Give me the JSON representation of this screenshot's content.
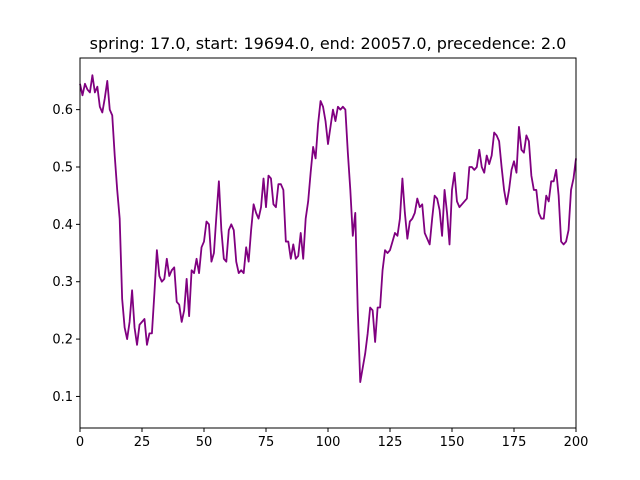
{
  "chart_data": {
    "type": "line",
    "title": "spring: 17.0, start: 19694.0, end: 20057.0, precedence: 2.0",
    "xlabel": "",
    "ylabel": "",
    "xlim": [
      0,
      200
    ],
    "ylim": [
      0.045,
      0.69
    ],
    "xticks": [
      0,
      25,
      50,
      75,
      100,
      125,
      150,
      175,
      200
    ],
    "yticks": [
      0.1,
      0.2,
      0.3,
      0.4,
      0.5,
      0.6
    ],
    "grid": false,
    "legend": "none",
    "series": [
      {
        "color": "#800080",
        "x": [
          0,
          1,
          2,
          3,
          4,
          5,
          6,
          7,
          8,
          9,
          10,
          11,
          12,
          13,
          14,
          15,
          16,
          17,
          18,
          19,
          20,
          21,
          22,
          23,
          24,
          25,
          26,
          27,
          28,
          29,
          30,
          31,
          32,
          33,
          34,
          35,
          36,
          37,
          38,
          39,
          40,
          41,
          42,
          43,
          44,
          45,
          46,
          47,
          48,
          49,
          50,
          51,
          52,
          53,
          54,
          55,
          56,
          57,
          58,
          59,
          60,
          61,
          62,
          63,
          64,
          65,
          66,
          67,
          68,
          69,
          70,
          71,
          72,
          73,
          74,
          75,
          76,
          77,
          78,
          79,
          80,
          81,
          82,
          83,
          84,
          85,
          86,
          87,
          88,
          89,
          90,
          91,
          92,
          93,
          94,
          95,
          96,
          97,
          98,
          99,
          100,
          101,
          102,
          103,
          104,
          105,
          106,
          107,
          108,
          109,
          110,
          111,
          112,
          113,
          114,
          115,
          116,
          117,
          118,
          119,
          120,
          121,
          122,
          123,
          124,
          125,
          126,
          127,
          128,
          129,
          130,
          131,
          132,
          133,
          134,
          135,
          136,
          137,
          138,
          139,
          140,
          141,
          142,
          143,
          144,
          145,
          146,
          147,
          148,
          149,
          150,
          151,
          152,
          153,
          154,
          155,
          156,
          157,
          158,
          159,
          160,
          161,
          162,
          163,
          164,
          165,
          166,
          167,
          168,
          169,
          170,
          171,
          172,
          173,
          174,
          175,
          176,
          177,
          178,
          179,
          180,
          181,
          182,
          183,
          184,
          185,
          186,
          187,
          188,
          189,
          190,
          191,
          192,
          193,
          194,
          195,
          196,
          197,
          198,
          199,
          200
        ],
        "y": [
          0.645,
          0.625,
          0.645,
          0.635,
          0.63,
          0.66,
          0.63,
          0.64,
          0.605,
          0.595,
          0.62,
          0.65,
          0.6,
          0.59,
          0.52,
          0.46,
          0.41,
          0.27,
          0.22,
          0.2,
          0.23,
          0.285,
          0.22,
          0.19,
          0.225,
          0.23,
          0.235,
          0.19,
          0.21,
          0.21,
          0.28,
          0.355,
          0.31,
          0.3,
          0.305,
          0.34,
          0.31,
          0.32,
          0.325,
          0.265,
          0.26,
          0.23,
          0.25,
          0.305,
          0.24,
          0.32,
          0.315,
          0.34,
          0.315,
          0.36,
          0.37,
          0.405,
          0.4,
          0.335,
          0.35,
          0.415,
          0.475,
          0.39,
          0.34,
          0.335,
          0.39,
          0.4,
          0.39,
          0.335,
          0.315,
          0.32,
          0.315,
          0.36,
          0.335,
          0.39,
          0.435,
          0.42,
          0.41,
          0.43,
          0.48,
          0.43,
          0.485,
          0.48,
          0.435,
          0.43,
          0.47,
          0.47,
          0.46,
          0.37,
          0.37,
          0.34,
          0.365,
          0.34,
          0.345,
          0.385,
          0.34,
          0.41,
          0.44,
          0.49,
          0.535,
          0.515,
          0.575,
          0.615,
          0.605,
          0.58,
          0.54,
          0.57,
          0.6,
          0.58,
          0.605,
          0.6,
          0.605,
          0.6,
          0.525,
          0.46,
          0.38,
          0.42,
          0.25,
          0.125,
          0.15,
          0.175,
          0.21,
          0.255,
          0.25,
          0.195,
          0.255,
          0.255,
          0.32,
          0.355,
          0.35,
          0.355,
          0.37,
          0.385,
          0.38,
          0.41,
          0.48,
          0.42,
          0.375,
          0.405,
          0.41,
          0.42,
          0.445,
          0.43,
          0.435,
          0.385,
          0.375,
          0.365,
          0.41,
          0.45,
          0.445,
          0.425,
          0.38,
          0.46,
          0.42,
          0.365,
          0.46,
          0.49,
          0.44,
          0.43,
          0.435,
          0.44,
          0.445,
          0.5,
          0.5,
          0.495,
          0.5,
          0.53,
          0.5,
          0.49,
          0.52,
          0.505,
          0.52,
          0.56,
          0.555,
          0.545,
          0.5,
          0.46,
          0.435,
          0.46,
          0.495,
          0.51,
          0.49,
          0.57,
          0.53,
          0.525,
          0.555,
          0.545,
          0.485,
          0.46,
          0.46,
          0.42,
          0.41,
          0.41,
          0.45,
          0.44,
          0.475,
          0.475,
          0.495,
          0.45,
          0.37,
          0.365,
          0.37,
          0.39,
          0.46,
          0.48,
          0.515
        ]
      }
    ]
  }
}
